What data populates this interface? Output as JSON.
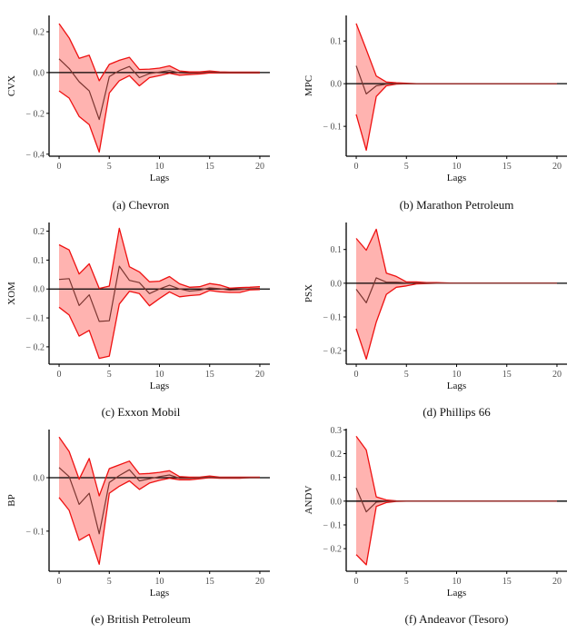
{
  "chart_data": [
    {
      "type": "area",
      "id": "a",
      "caption": "(a) Chevron",
      "ylabel": "CVX",
      "xlabel": "Lags",
      "xlim": [
        -1,
        21
      ],
      "ylim": [
        -0.41,
        0.28
      ],
      "xticks": [
        0,
        5,
        10,
        15,
        20
      ],
      "xtick_labels": [
        "0",
        "5",
        "10",
        "15",
        "20"
      ],
      "yticks": [
        -0.4,
        -0.2,
        0.0,
        0.2
      ],
      "ytick_labels": [
        "− 0.4",
        "− 0.2",
        "0.0",
        "0.2"
      ],
      "x": [
        0,
        1,
        2,
        3,
        4,
        5,
        6,
        7,
        8,
        9,
        10,
        11,
        12,
        13,
        14,
        15,
        16,
        17,
        18,
        19,
        20
      ],
      "series": [
        {
          "name": "upper",
          "values": [
            0.24,
            0.17,
            0.07,
            0.085,
            -0.04,
            0.04,
            0.06,
            0.075,
            0.015,
            0.017,
            0.022,
            0.033,
            0.008,
            0.003,
            0.003,
            0.008,
            0.003,
            0.002,
            0.002,
            0.002,
            0.002
          ]
        },
        {
          "name": "irf",
          "values": [
            0.067,
            0.02,
            -0.045,
            -0.09,
            -0.23,
            -0.02,
            0.01,
            0.03,
            -0.025,
            -0.005,
            0.002,
            0.01,
            -0.002,
            -0.003,
            -0.002,
            0.003,
            0,
            0,
            0,
            0,
            0
          ]
        },
        {
          "name": "lower",
          "values": [
            -0.09,
            -0.125,
            -0.215,
            -0.255,
            -0.39,
            -0.1,
            -0.04,
            -0.015,
            -0.065,
            -0.025,
            -0.015,
            -0.003,
            -0.013,
            -0.01,
            -0.007,
            -0.002,
            -0.002,
            -0.002,
            -0.002,
            -0.002,
            -0.002
          ]
        }
      ]
    },
    {
      "type": "area",
      "id": "b",
      "caption": "(b) Marathon Petroleum",
      "ylabel": "MPC",
      "xlabel": "Lags",
      "xlim": [
        -1,
        21
      ],
      "ylim": [
        -0.17,
        0.16
      ],
      "xticks": [
        0,
        5,
        10,
        15,
        20
      ],
      "xtick_labels": [
        "0",
        "5",
        "10",
        "15",
        "20"
      ],
      "yticks": [
        -0.1,
        0.0,
        0.1
      ],
      "ytick_labels": [
        "− 0.1",
        "0.0",
        "0.1"
      ],
      "x": [
        0,
        1,
        2,
        3,
        4,
        5,
        6,
        7,
        8,
        9,
        10,
        11,
        12,
        13,
        14,
        15,
        16,
        17,
        18,
        19,
        20
      ],
      "series": [
        {
          "name": "upper",
          "values": [
            0.141,
            0.08,
            0.018,
            0.004,
            0.002,
            0.001,
            0,
            0,
            0,
            0,
            0,
            0,
            0,
            0,
            0,
            0,
            0,
            0,
            0,
            0,
            0
          ]
        },
        {
          "name": "irf",
          "values": [
            0.042,
            -0.024,
            -0.005,
            -0.001,
            0,
            0,
            0,
            0,
            0,
            0,
            0,
            0,
            0,
            0,
            0,
            0,
            0,
            0,
            0,
            0,
            0
          ]
        },
        {
          "name": "lower",
          "values": [
            -0.072,
            -0.156,
            -0.03,
            -0.005,
            -0.001,
            0,
            0,
            0,
            0,
            0,
            0,
            0,
            0,
            0,
            0,
            0,
            0,
            0,
            0,
            0,
            0
          ]
        }
      ]
    },
    {
      "type": "area",
      "id": "c",
      "caption": "(c) Exxon Mobil",
      "ylabel": "XOM",
      "xlabel": "Lags",
      "xlim": [
        -1,
        21
      ],
      "ylim": [
        -0.26,
        0.23
      ],
      "xticks": [
        0,
        5,
        10,
        15,
        20
      ],
      "xtick_labels": [
        "0",
        "5",
        "10",
        "15",
        "20"
      ],
      "yticks": [
        -0.2,
        -0.1,
        0.0,
        0.1,
        0.2
      ],
      "ytick_labels": [
        "− 0.2",
        "− 0.1",
        "0.0",
        "0.1",
        "0.2"
      ],
      "x": [
        0,
        1,
        2,
        3,
        4,
        5,
        6,
        7,
        8,
        9,
        10,
        11,
        12,
        13,
        14,
        15,
        16,
        17,
        18,
        19,
        20
      ],
      "series": [
        {
          "name": "upper",
          "values": [
            0.153,
            0.135,
            0.052,
            0.087,
            0.002,
            0.01,
            0.21,
            0.077,
            0.059,
            0.025,
            0.027,
            0.043,
            0.018,
            0.006,
            0.008,
            0.019,
            0.014,
            0.003,
            0.005,
            0.006,
            0.008
          ]
        },
        {
          "name": "irf",
          "values": [
            0.033,
            0.036,
            -0.057,
            -0.02,
            -0.112,
            -0.11,
            0.079,
            0.03,
            0.022,
            -0.016,
            0,
            0.013,
            0,
            -0.007,
            -0.004,
            0.004,
            0.001,
            -0.004,
            -0.002,
            0.001,
            0.002
          ]
        },
        {
          "name": "lower",
          "values": [
            -0.063,
            -0.09,
            -0.163,
            -0.143,
            -0.24,
            -0.232,
            -0.052,
            -0.008,
            -0.016,
            -0.058,
            -0.033,
            -0.01,
            -0.027,
            -0.023,
            -0.02,
            -0.005,
            -0.01,
            -0.012,
            -0.012,
            -0.003,
            -0.002
          ]
        }
      ]
    },
    {
      "type": "area",
      "id": "d",
      "caption": "(d) Phillips 66",
      "ylabel": "PSX",
      "xlabel": "Lags",
      "xlim": [
        -1,
        21
      ],
      "ylim": [
        -0.24,
        0.18
      ],
      "xticks": [
        0,
        5,
        10,
        15,
        20
      ],
      "xtick_labels": [
        "0",
        "5",
        "10",
        "15",
        "20"
      ],
      "yticks": [
        -0.2,
        -0.1,
        0.0,
        0.1
      ],
      "ytick_labels": [
        "− 0.2",
        "− 0.1",
        "0.0",
        "0.1"
      ],
      "x": [
        0,
        1,
        2,
        3,
        4,
        5,
        6,
        7,
        8,
        9,
        10,
        11,
        12,
        13,
        14,
        15,
        16,
        17,
        18,
        19,
        20
      ],
      "series": [
        {
          "name": "upper",
          "values": [
            0.133,
            0.098,
            0.16,
            0.03,
            0.02,
            0.004,
            0.004,
            0.002,
            0.002,
            0.001,
            0,
            0,
            0,
            0,
            0,
            0,
            0,
            0,
            0,
            0,
            0
          ]
        },
        {
          "name": "irf",
          "values": [
            -0.018,
            -0.058,
            0.016,
            0.003,
            0.003,
            0.001,
            0.001,
            0,
            0,
            0,
            0,
            0,
            0,
            0,
            0,
            0,
            0,
            0,
            0,
            0,
            0
          ]
        },
        {
          "name": "lower",
          "values": [
            -0.135,
            -0.225,
            -0.115,
            -0.033,
            -0.012,
            -0.008,
            -0.002,
            -0.001,
            0,
            0,
            0,
            0,
            0,
            0,
            0,
            0,
            0,
            0,
            0,
            0,
            0
          ]
        }
      ]
    },
    {
      "type": "area",
      "id": "e",
      "caption": "(e) British Petroleum",
      "ylabel": "BP",
      "xlabel": "Lags",
      "xlim": [
        -1,
        21
      ],
      "ylim": [
        -0.175,
        0.09
      ],
      "xticks": [
        0,
        5,
        10,
        15,
        20
      ],
      "xtick_labels": [
        "0",
        "5",
        "10",
        "15",
        "20"
      ],
      "yticks": [
        -0.1,
        0.0
      ],
      "ytick_labels": [
        "− 0.1",
        "0.0"
      ],
      "x": [
        0,
        1,
        2,
        3,
        4,
        5,
        6,
        7,
        8,
        9,
        10,
        11,
        12,
        13,
        14,
        15,
        16,
        17,
        18,
        19,
        20
      ],
      "series": [
        {
          "name": "upper",
          "values": [
            0.076,
            0.049,
            -0.003,
            0.036,
            -0.034,
            0.017,
            0.024,
            0.031,
            0.007,
            0.008,
            0.01,
            0.013,
            0.002,
            0.001,
            0.001,
            0.003,
            0.001,
            0.001,
            0.001,
            0.001,
            0.001
          ]
        },
        {
          "name": "irf",
          "values": [
            0.019,
            0.002,
            -0.05,
            -0.029,
            -0.105,
            -0.009,
            0.004,
            0.015,
            -0.006,
            -0.002,
            0.002,
            0.005,
            -0.001,
            -0.001,
            0,
            0.001,
            0,
            0,
            0,
            0,
            0
          ]
        },
        {
          "name": "lower",
          "values": [
            -0.037,
            -0.061,
            -0.117,
            -0.106,
            -0.162,
            -0.029,
            -0.016,
            -0.006,
            -0.022,
            -0.01,
            -0.005,
            -0.001,
            -0.004,
            -0.004,
            -0.002,
            0,
            -0.001,
            -0.001,
            -0.001,
            0,
            0
          ]
        }
      ]
    },
    {
      "type": "area",
      "id": "f",
      "caption": "(f) Andeavor (Tesoro)",
      "ylabel": "ANDV",
      "xlabel": "Lags",
      "xlim": [
        -1,
        21
      ],
      "ylim": [
        -0.295,
        0.305
      ],
      "xticks": [
        0,
        5,
        10,
        15,
        20
      ],
      "xtick_labels": [
        "0",
        "5",
        "10",
        "15",
        "20"
      ],
      "yticks": [
        -0.2,
        -0.1,
        0.0,
        0.1,
        0.2,
        0.3
      ],
      "ytick_labels": [
        "− 0.2",
        "− 0.1",
        "0.0",
        "0.1",
        "0.2",
        "0.3"
      ],
      "x": [
        0,
        1,
        2,
        3,
        4,
        5,
        6,
        7,
        8,
        9,
        10,
        11,
        12,
        13,
        14,
        15,
        16,
        17,
        18,
        19,
        20
      ],
      "series": [
        {
          "name": "upper",
          "values": [
            0.273,
            0.215,
            0.018,
            0.005,
            0.001,
            0,
            0,
            0,
            0,
            0,
            0,
            0,
            0,
            0,
            0,
            0,
            0,
            0,
            0,
            0,
            0
          ]
        },
        {
          "name": "irf",
          "values": [
            0.055,
            -0.045,
            -0.004,
            -0.001,
            0,
            0,
            0,
            0,
            0,
            0,
            0,
            0,
            0,
            0,
            0,
            0,
            0,
            0,
            0,
            0,
            0
          ]
        },
        {
          "name": "lower",
          "values": [
            -0.225,
            -0.268,
            -0.022,
            -0.006,
            -0.001,
            0,
            0,
            0,
            0,
            0,
            0,
            0,
            0,
            0,
            0,
            0,
            0,
            0,
            0,
            0,
            0
          ]
        }
      ]
    }
  ],
  "colors": {
    "band_fill": "#ffb3b0",
    "band_edge": "#ee1111",
    "irf_line": "#7a3530",
    "zero_line": "#000000",
    "axis": "#000000",
    "tick_label": "#4d4d4d"
  }
}
